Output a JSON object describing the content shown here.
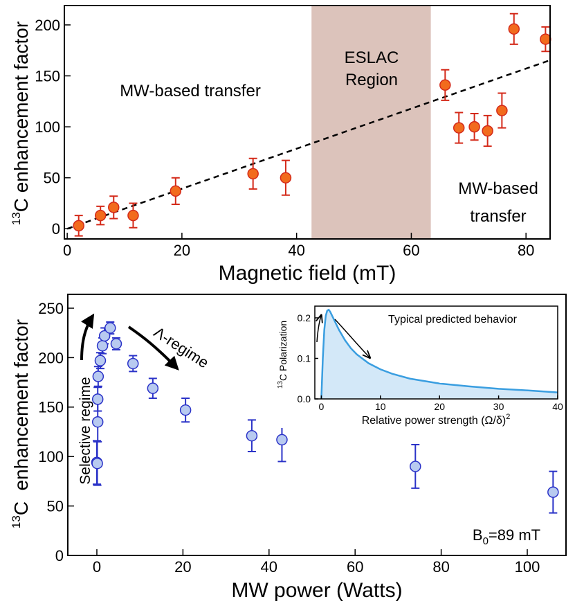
{
  "chart_data": [
    {
      "type": "scatter",
      "xlabel": "Magnetic field (mT)",
      "ylabel": [
        "13",
        "C enhancement factor"
      ],
      "x": [
        2,
        5.8,
        8.1,
        11.5,
        18.9,
        32.4,
        38.1,
        65.9,
        68.3,
        71,
        73.3,
        75.8,
        77.9,
        83.4
      ],
      "values": [
        3,
        13,
        21,
        13,
        37,
        54,
        50,
        141,
        99,
        100,
        96,
        116,
        196,
        186
      ],
      "errors": [
        10,
        9,
        11,
        12,
        13,
        15,
        17,
        15,
        15,
        13,
        15,
        17,
        15,
        12
      ],
      "color": "#f26b1d",
      "edge_color": "#d42a1a",
      "xlim": [
        -0.5,
        84.2
      ],
      "ylim": [
        -10,
        219
      ],
      "xticks": [
        0,
        20,
        40,
        60,
        80
      ],
      "yticks": [
        0,
        50,
        100,
        150,
        200
      ],
      "fit": {
        "x": [
          0,
          84
        ],
        "values": [
          0,
          165
        ]
      },
      "band": [
        42.6,
        63.4
      ],
      "band_color": "#dcc3bb",
      "annotations": [
        "MW-based transfer",
        "ESLAC",
        "Region",
        "MW-based",
        "transfer"
      ]
    },
    {
      "type": "scatter",
      "xlabel": "MW power (Watts)",
      "ylabel": [
        "13",
        "C  enhancement factor"
      ],
      "x": [
        0,
        0.1,
        0.2,
        0.2,
        0.3,
        0.8,
        1.3,
        1.8,
        3.1,
        4.5,
        8.4,
        13,
        20.6,
        36,
        43,
        74,
        106
      ],
      "values": [
        94,
        93,
        135,
        158,
        181,
        197,
        212,
        222,
        230,
        214,
        194,
        169,
        147,
        121,
        117,
        90,
        64
      ],
      "errors": [
        22,
        22,
        20,
        12,
        10,
        8,
        8,
        8,
        6,
        6,
        8,
        10,
        12,
        16,
        22,
        22,
        21
      ],
      "color": "#b8caf0",
      "edge_color": "#2b33c8",
      "xlim": [
        -6.75,
        109
      ],
      "ylim": [
        0,
        264
      ],
      "xticks": [
        0,
        20,
        40,
        60,
        80,
        100
      ],
      "yticks": [
        0,
        50,
        100,
        150,
        200,
        250
      ],
      "annotations": [
        "Selective regime",
        "Λ-regime"
      ],
      "b0": [
        "B",
        "0",
        "=89 mT"
      ]
    },
    {
      "type": "line",
      "xlabel": [
        "Relative power strength (Ω/δ)",
        "2"
      ],
      "ylabel": [
        "13",
        "C Polarization"
      ],
      "annotation": "Typical predicted behavior",
      "x": [
        0,
        0.25,
        0.5,
        0.75,
        1,
        1.25,
        1.5,
        2,
        3,
        4,
        5,
        6,
        8,
        10,
        12,
        15,
        20,
        25,
        30,
        35,
        40
      ],
      "values": [
        0,
        0.1,
        0.17,
        0.205,
        0.218,
        0.22,
        0.215,
        0.2,
        0.17,
        0.145,
        0.125,
        0.11,
        0.088,
        0.073,
        0.062,
        0.05,
        0.038,
        0.031,
        0.025,
        0.021,
        0.016
      ],
      "color": "#3a9ee0",
      "fill": "#d3e8f8",
      "xlim": [
        -1.1,
        40
      ],
      "ylim": [
        0,
        0.229
      ],
      "xticks": [
        0,
        10,
        20,
        30,
        40
      ],
      "yticks": [
        {
          "value": 0,
          "label": "0.0"
        },
        0.1,
        0.2
      ]
    }
  ]
}
